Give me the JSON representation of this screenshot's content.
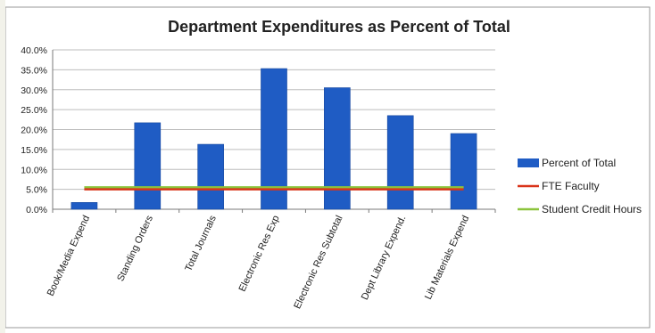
{
  "chart_data": {
    "type": "bar",
    "title": "Department Expenditures as Percent of Total",
    "categories": [
      "Book/Media Expend",
      "Standing Orders",
      "Total Journals",
      "Electronic Res Exp",
      "Electronic Res Subtotal",
      "Dept Library Expend.",
      "Lib Materials Expend"
    ],
    "series": [
      {
        "name": "Percent of Total",
        "type": "bar",
        "color": "#1f5cc4",
        "values": [
          1.7,
          21.7,
          16.3,
          35.3,
          30.5,
          23.5,
          19.0
        ]
      },
      {
        "name": "FTE Faculty",
        "type": "line",
        "color": "#d9341a",
        "values": [
          5.0,
          5.0,
          5.0,
          5.0,
          5.0,
          5.0,
          5.0
        ]
      },
      {
        "name": "Student Credit Hours",
        "type": "line",
        "color": "#8cc43c",
        "values": [
          5.5,
          5.5,
          5.5,
          5.5,
          5.5,
          5.5,
          5.5
        ]
      }
    ],
    "y_ticks": [
      "0.0%",
      "5.0%",
      "10.0%",
      "15.0%",
      "20.0%",
      "25.0%",
      "30.0%",
      "35.0%",
      "40.0%"
    ],
    "ylim": [
      0,
      40
    ],
    "grid": true,
    "legend_position": "right"
  }
}
